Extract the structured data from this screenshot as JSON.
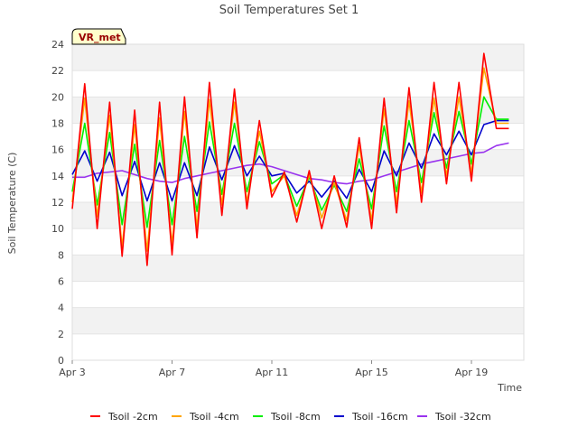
{
  "chart_data": {
    "type": "line",
    "title": "Soil Temperatures Set 1",
    "xlabel": "Time",
    "ylabel": "Soil Temperature (C)",
    "annotation": "VR_met",
    "x_unit": "date (April)",
    "xlim": [
      "Apr 3",
      "Apr 21.1"
    ],
    "ylim": [
      0,
      24
    ],
    "yticks": [
      0,
      2,
      4,
      6,
      8,
      10,
      12,
      14,
      16,
      18,
      20,
      22,
      24
    ],
    "xticks": [
      "Apr 3",
      "Apr 7",
      "Apr 11",
      "Apr 15",
      "Apr 19"
    ],
    "grid": "horizontal bands",
    "legend_position": "bottom",
    "sampling": "12-hourly readings, Apr 3 00:00 to Apr 20 12:00",
    "x": [
      "Apr 3 00:00",
      "Apr 3 12:00",
      "Apr 4 00:00",
      "Apr 4 12:00",
      "Apr 5 00:00",
      "Apr 5 12:00",
      "Apr 6 00:00",
      "Apr 6 12:00",
      "Apr 7 00:00",
      "Apr 7 12:00",
      "Apr 8 00:00",
      "Apr 8 12:00",
      "Apr 9 00:00",
      "Apr 9 12:00",
      "Apr 10 00:00",
      "Apr 10 12:00",
      "Apr 11 00:00",
      "Apr 11 12:00",
      "Apr 12 00:00",
      "Apr 12 12:00",
      "Apr 13 00:00",
      "Apr 13 12:00",
      "Apr 14 00:00",
      "Apr 14 12:00",
      "Apr 15 00:00",
      "Apr 15 12:00",
      "Apr 16 00:00",
      "Apr 16 12:00",
      "Apr 17 00:00",
      "Apr 17 12:00",
      "Apr 18 00:00",
      "Apr 18 12:00",
      "Apr 19 00:00",
      "Apr 19 12:00",
      "Apr 20 00:00",
      "Apr 20 12:00"
    ],
    "series": [
      {
        "name": "Tsoil -2cm",
        "color": "#ff0000",
        "values": [
          11.5,
          21.0,
          10.0,
          19.6,
          7.9,
          19.0,
          7.2,
          19.6,
          8.0,
          20.0,
          9.3,
          21.1,
          11.0,
          20.6,
          11.5,
          18.2,
          12.4,
          14.3,
          10.5,
          14.4,
          10.0,
          14.0,
          10.1,
          16.9,
          10.0,
          19.9,
          11.2,
          20.7,
          12.0,
          21.1,
          13.4,
          21.1,
          13.6,
          23.3,
          17.6,
          17.6
        ]
      },
      {
        "name": "Tsoil -4cm",
        "color": "#ffa500",
        "values": [
          12.0,
          19.9,
          10.9,
          18.6,
          8.6,
          17.9,
          8.3,
          18.4,
          8.8,
          18.9,
          10.1,
          19.8,
          11.8,
          19.6,
          12.0,
          17.4,
          12.8,
          14.0,
          11.0,
          14.1,
          10.8,
          13.5,
          10.6,
          16.3,
          10.6,
          19.1,
          11.9,
          19.7,
          12.7,
          19.9,
          14.0,
          20.0,
          14.2,
          22.2,
          18.0,
          18.0
        ]
      },
      {
        "name": "Tsoil -8cm",
        "color": "#00ee00",
        "values": [
          12.8,
          18.0,
          11.8,
          17.3,
          10.3,
          16.4,
          10.1,
          16.7,
          10.3,
          17.0,
          11.3,
          18.1,
          12.6,
          18.0,
          12.8,
          16.6,
          13.4,
          14.1,
          11.7,
          13.9,
          11.4,
          13.3,
          11.3,
          15.3,
          11.5,
          17.8,
          12.8,
          18.2,
          13.5,
          18.8,
          14.6,
          18.9,
          14.9,
          20.0,
          18.3,
          18.3
        ]
      },
      {
        "name": "Tsoil -16cm",
        "color": "#0000cc",
        "values": [
          14.1,
          15.9,
          13.6,
          15.8,
          12.5,
          15.1,
          12.1,
          15.0,
          12.1,
          15.0,
          12.5,
          16.2,
          13.7,
          16.3,
          14.0,
          15.5,
          14.0,
          14.2,
          12.7,
          13.6,
          12.4,
          13.6,
          12.3,
          14.5,
          12.8,
          15.9,
          14.0,
          16.5,
          14.6,
          17.2,
          15.6,
          17.4,
          15.6,
          17.9,
          18.2,
          18.2
        ]
      },
      {
        "name": "Tsoil -32cm",
        "color": "#9933ee",
        "values": [
          13.9,
          13.9,
          14.2,
          14.3,
          14.4,
          14.1,
          13.8,
          13.6,
          13.5,
          13.8,
          14.0,
          14.2,
          14.4,
          14.6,
          14.8,
          14.9,
          14.7,
          14.4,
          14.1,
          13.8,
          13.7,
          13.5,
          13.4,
          13.6,
          13.7,
          14.0,
          14.3,
          14.6,
          14.9,
          15.1,
          15.3,
          15.5,
          15.7,
          15.8,
          16.3,
          16.5
        ]
      }
    ]
  }
}
